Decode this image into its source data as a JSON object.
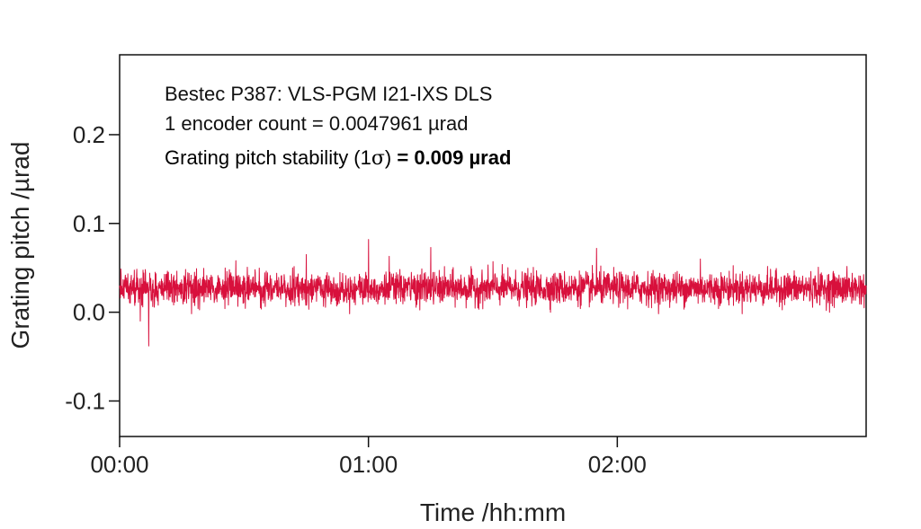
{
  "chart_data": {
    "type": "line",
    "xlabel": "Time /hh:mm",
    "ylabel": "Grating pitch /µrad",
    "xlim": [
      0,
      180
    ],
    "ylim": [
      -0.14,
      0.29
    ],
    "x_ticks": [
      {
        "value": 0,
        "label": "00:00"
      },
      {
        "value": 60,
        "label": "01:00"
      },
      {
        "value": 120,
        "label": "02:00"
      }
    ],
    "y_ticks": [
      {
        "value": -0.1,
        "label": "-0.1"
      },
      {
        "value": 0.0,
        "label": "0.0"
      },
      {
        "value": 0.1,
        "label": "0.1"
      },
      {
        "value": 0.2,
        "label": "0.2"
      }
    ],
    "annotations": {
      "line1": "Bestec P387: VLS-PGM I21-IXS DLS",
      "line2": "1 encoder count = 0.0047961 µrad",
      "line3_prefix": "Grating pitch stability (1",
      "line3_sigma": "σ",
      "line3_suffix": ") = 0.009 µrad"
    },
    "series": [
      {
        "color": "#d8103c",
        "mean": 0.027,
        "std": 0.009,
        "x_start": 0,
        "x_end": 180,
        "num_points": 3000,
        "sample_points": [
          [
            0,
            0.03
          ],
          [
            5,
            -0.01
          ],
          [
            7,
            -0.038
          ],
          [
            28,
            0.058
          ],
          [
            45,
            0.065
          ],
          [
            60,
            0.082
          ],
          [
            65,
            0.063
          ],
          [
            75,
            0.073
          ],
          [
            90,
            0.057
          ],
          [
            115,
            0.072
          ],
          [
            140,
            0.06
          ],
          [
            180,
            0.03
          ]
        ]
      }
    ],
    "grid": false,
    "legend": "none"
  }
}
